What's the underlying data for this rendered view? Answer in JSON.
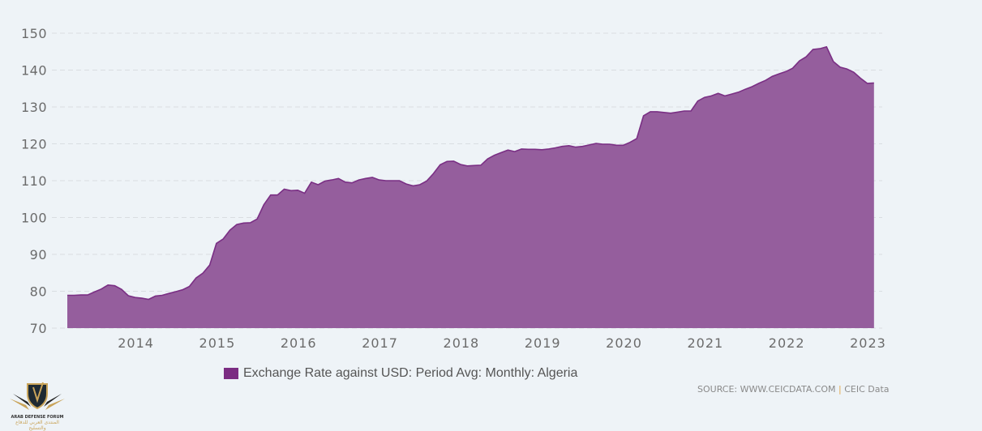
{
  "chart_data": {
    "type": "area",
    "title": "",
    "xlabel": "",
    "ylabel": "",
    "ylim": [
      70,
      150
    ],
    "yticks": [
      70,
      80,
      90,
      100,
      110,
      120,
      130,
      140,
      150
    ],
    "xticks": [
      "2014",
      "2015",
      "2016",
      "2017",
      "2018",
      "2019",
      "2020",
      "2021",
      "2022",
      "2023"
    ],
    "grid": true,
    "legend_position": "bottom",
    "colors": {
      "fill": "#955e9d",
      "line": "#7a2f84",
      "legend": "#7b2c82"
    },
    "series": [
      {
        "name": "Exchange Rate against USD: Period Avg: Monthly: Algeria",
        "start": "2013-03",
        "frequency": "monthly",
        "values": [
          78.9,
          78.9,
          79.0,
          79.0,
          79.8,
          80.6,
          81.7,
          81.5,
          80.5,
          78.8,
          78.3,
          78.1,
          77.8,
          78.7,
          78.9,
          79.4,
          79.9,
          80.4,
          81.3,
          83.6,
          84.9,
          87.1,
          93.0,
          94.2,
          96.6,
          98.1,
          98.5,
          98.6,
          99.6,
          103.5,
          106.1,
          106.1,
          107.7,
          107.3,
          107.4,
          106.6,
          109.6,
          108.9,
          109.9,
          110.2,
          110.6,
          109.6,
          109.4,
          110.2,
          110.6,
          110.9,
          110.2,
          110.0,
          110.0,
          110.0,
          109.1,
          108.6,
          108.9,
          109.9,
          111.9,
          114.3,
          115.2,
          115.3,
          114.4,
          114.0,
          114.1,
          114.2,
          115.9,
          116.9,
          117.6,
          118.3,
          117.9,
          118.6,
          118.5,
          118.5,
          118.4,
          118.6,
          118.9,
          119.3,
          119.5,
          119.1,
          119.3,
          119.7,
          120.1,
          119.9,
          119.9,
          119.6,
          119.6,
          120.4,
          121.4,
          127.6,
          128.7,
          128.7,
          128.5,
          128.3,
          128.6,
          128.9,
          128.9,
          131.6,
          132.6,
          133.0,
          133.7,
          133.0,
          133.5,
          134.0,
          134.8,
          135.5,
          136.4,
          137.2,
          138.3,
          139.0,
          139.6,
          140.5,
          142.5,
          143.6,
          145.6,
          145.8,
          146.3,
          142.3,
          140.8,
          140.3,
          139.4,
          137.8,
          136.4,
          136.5
        ]
      }
    ]
  },
  "legend": {
    "label": "Exchange Rate against USD: Period Avg: Monthly: Algeria"
  },
  "source": {
    "text": "SOURCE: WWW.CEICDATA.COM",
    "separator": "|",
    "brand": "CEIC Data"
  },
  "watermark": {
    "initials": "DA",
    "name": "ARAB DEFENSE FORUM",
    "arabic": "المنتدى العربي للدفاع والتسليح"
  }
}
